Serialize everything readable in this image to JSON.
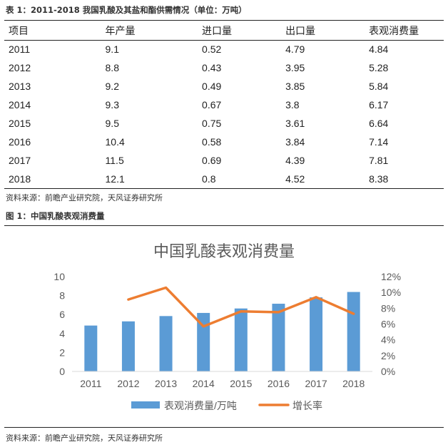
{
  "table": {
    "caption": "表 1：2011-2018 我国乳酸及其盐和酯供需情况（单位：万吨）",
    "headers": [
      "项目",
      "年产量",
      "进口量",
      "出口量",
      "表观消费量"
    ],
    "rows": [
      [
        "2011",
        "9.1",
        "0.52",
        "4.79",
        "4.84"
      ],
      [
        "2012",
        "8.8",
        "0.43",
        "3.95",
        "5.28"
      ],
      [
        "2013",
        "9.2",
        "0.49",
        "3.85",
        "5.84"
      ],
      [
        "2014",
        "9.3",
        "0.67",
        "3.8",
        "6.17"
      ],
      [
        "2015",
        "9.5",
        "0.75",
        "3.61",
        "6.64"
      ],
      [
        "2016",
        "10.4",
        "0.58",
        "3.84",
        "7.14"
      ],
      [
        "2017",
        "11.5",
        "0.69",
        "4.39",
        "7.81"
      ],
      [
        "2018",
        "12.1",
        "0.8",
        "4.52",
        "8.38"
      ]
    ],
    "source": "资料来源：前瞻产业研究院，天风证券研究所"
  },
  "figure": {
    "caption": "图 1：中国乳酸表观消费量",
    "source": "资料来源：前瞻产业研究院，天风证券研究所"
  },
  "chart_data": {
    "type": "bar",
    "title": "中国乳酸表观消费量",
    "categories": [
      "2011",
      "2012",
      "2013",
      "2014",
      "2015",
      "2016",
      "2017",
      "2018"
    ],
    "series": [
      {
        "name": "表观消费量/万吨",
        "type": "bar",
        "axis": "left",
        "values": [
          4.84,
          5.28,
          5.84,
          6.17,
          6.64,
          7.14,
          7.81,
          8.38
        ],
        "color": "#5B9BD5"
      },
      {
        "name": "增长率",
        "type": "line",
        "axis": "right",
        "values": [
          null,
          9.1,
          10.6,
          5.7,
          7.6,
          7.5,
          9.4,
          7.3
        ],
        "color": "#ED7D31"
      }
    ],
    "ylim_left": [
      0,
      10
    ],
    "yticks_left": [
      "0",
      "2",
      "4",
      "6",
      "8",
      "10"
    ],
    "ylim_right": [
      0,
      12
    ],
    "yticks_right": [
      "0%",
      "2%",
      "4%",
      "6%",
      "8%",
      "10%",
      "12%"
    ],
    "grid": false,
    "legend": "bottom"
  }
}
